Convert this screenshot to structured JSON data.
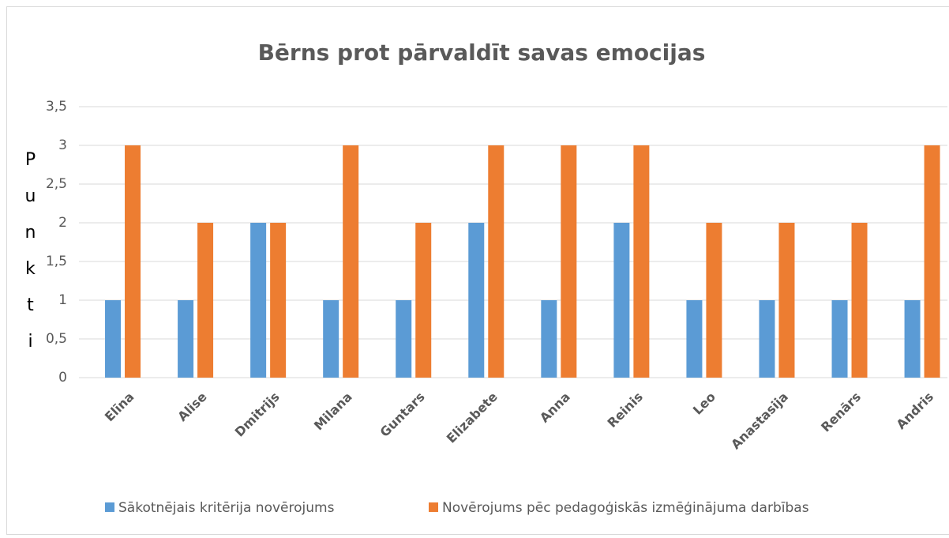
{
  "chart_data": {
    "type": "bar",
    "title": "Bērns prot pārvaldīt savas emocijas",
    "y_label": "Punkti",
    "categories": [
      "Elīna",
      "Alise",
      "Dmitrijs",
      "Milana",
      "Guntars",
      "Elizabete",
      "Anna",
      "Reinis",
      "Leo",
      "Anastasija",
      "Renārs",
      "Andris"
    ],
    "series": [
      {
        "name": "Sākotnējais kritērija novērojums",
        "color": "#5b9bd5",
        "values": [
          1,
          1,
          2,
          1,
          1,
          2,
          1,
          2,
          1,
          1,
          1,
          1
        ]
      },
      {
        "name": "Novērojums pēc pedagoģiskās izmēģinājuma darbības",
        "color": "#ed7d31",
        "values": [
          3,
          2,
          2,
          3,
          2,
          3,
          3,
          3,
          2,
          2,
          2,
          3
        ]
      }
    ],
    "ylim": [
      0,
      3.5
    ],
    "yticks": [
      0,
      {
        "value": 0.5,
        "label": "0,5"
      },
      1,
      {
        "value": 1.5,
        "label": "1,5"
      },
      2,
      {
        "value": 2.5,
        "label": "2,5"
      },
      3,
      {
        "value": 3.5,
        "label": "3,5"
      }
    ],
    "grid": true,
    "legend": "bottom"
  }
}
